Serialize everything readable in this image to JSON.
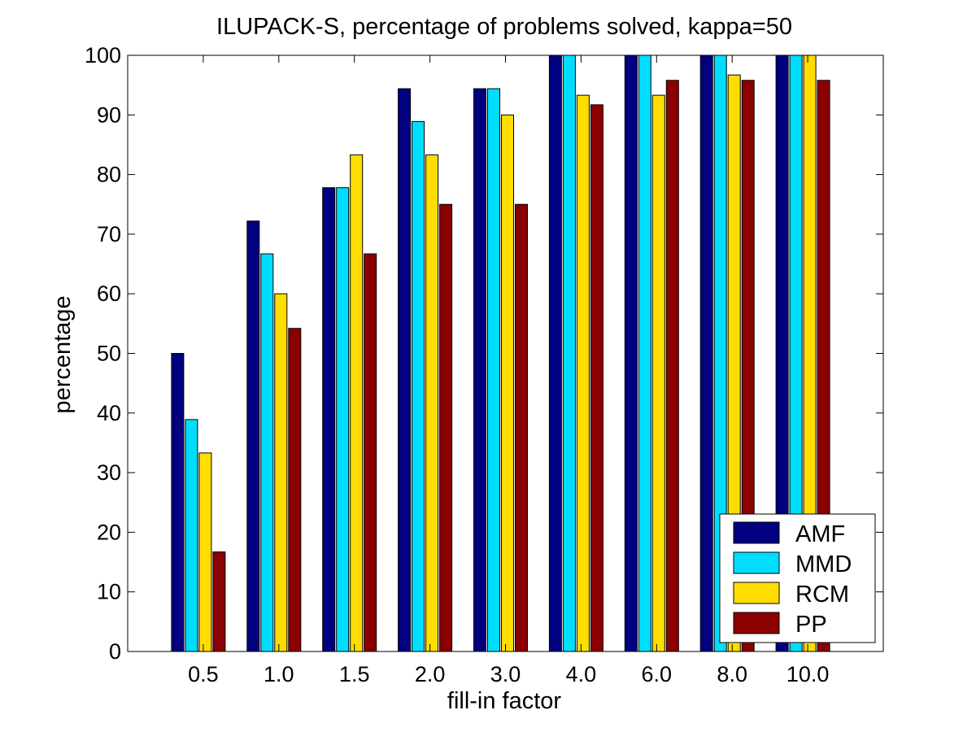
{
  "chart_data": {
    "type": "bar",
    "title": "ILUPACK-S, percentage of problems solved, kappa=50",
    "xlabel": "fill-in factor",
    "ylabel": "percentage",
    "categories": [
      "0.5",
      "1.0",
      "1.5",
      "2.0",
      "3.0",
      "4.0",
      "6.0",
      "8.0",
      "10.0"
    ],
    "series": [
      {
        "name": "AMF",
        "color": "#000080",
        "values": [
          50,
          72.2,
          77.8,
          94.4,
          94.4,
          100,
          100,
          100,
          100
        ]
      },
      {
        "name": "MMD",
        "color": "#00DDFF",
        "values": [
          38.9,
          66.7,
          77.8,
          88.9,
          94.4,
          100,
          100,
          100,
          100
        ]
      },
      {
        "name": "RCM",
        "color": "#FFDD00",
        "values": [
          33.3,
          60.0,
          83.3,
          83.3,
          90.0,
          93.3,
          93.3,
          96.7,
          100
        ]
      },
      {
        "name": "PP",
        "color": "#8B0000",
        "values": [
          16.7,
          54.2,
          66.7,
          75.0,
          75.0,
          91.7,
          95.8,
          95.8,
          95.8
        ]
      }
    ],
    "ylim": [
      0,
      100
    ],
    "yticks": [
      "0",
      "10",
      "20",
      "30",
      "40",
      "50",
      "60",
      "70",
      "80",
      "90",
      "100"
    ],
    "grid": false,
    "legend_position": "bottom-right"
  }
}
